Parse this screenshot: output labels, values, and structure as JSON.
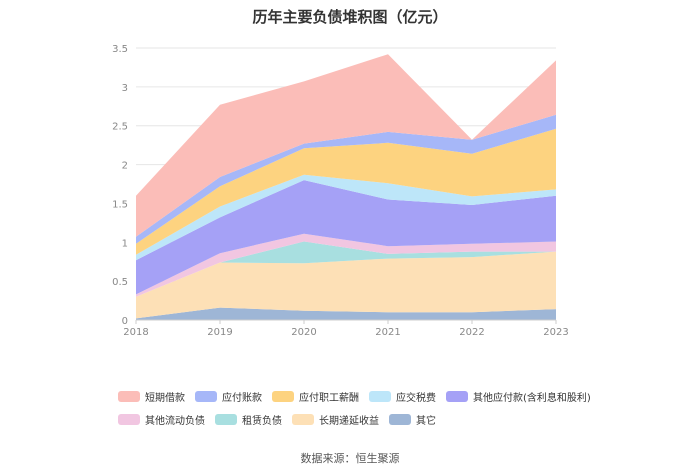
{
  "chart_data": {
    "type": "area",
    "stacked": true,
    "title": "历年主要负债堆积图（亿元）",
    "xlabel": "",
    "ylabel": "",
    "categories": [
      "2018",
      "2019",
      "2020",
      "2021",
      "2022",
      "2023"
    ],
    "ylim": [
      0,
      3.5
    ],
    "yticks": [
      "0",
      "0.5",
      "1",
      "1.5",
      "2",
      "2.5",
      "3",
      "3.5"
    ],
    "grid": true,
    "legend_position": "bottom",
    "series": [
      {
        "name": "其它",
        "color": "#9eb6d6",
        "values": [
          0.02,
          0.16,
          0.12,
          0.1,
          0.1,
          0.14
        ]
      },
      {
        "name": "长期递延收益",
        "color": "#fde0b6",
        "values": [
          0.28,
          0.58,
          0.61,
          0.69,
          0.71,
          0.74
        ]
      },
      {
        "name": "租赁负债",
        "color": "#a8dfe0",
        "values": [
          0.0,
          0.0,
          0.28,
          0.06,
          0.07,
          0.0
        ]
      },
      {
        "name": "其他流动负债",
        "color": "#f1c6e1",
        "values": [
          0.03,
          0.12,
          0.1,
          0.1,
          0.1,
          0.13
        ]
      },
      {
        "name": "其他应付款(含利息和股利)",
        "color": "#a5a1f6",
        "values": [
          0.44,
          0.46,
          0.69,
          0.6,
          0.5,
          0.59
        ]
      },
      {
        "name": "应交税费",
        "color": "#bde6f9",
        "values": [
          0.07,
          0.14,
          0.07,
          0.21,
          0.11,
          0.08
        ]
      },
      {
        "name": "应付职工薪酬",
        "color": "#fdd380",
        "values": [
          0.14,
          0.26,
          0.34,
          0.52,
          0.55,
          0.78
        ]
      },
      {
        "name": "应付账款",
        "color": "#a6b7f8",
        "values": [
          0.09,
          0.12,
          0.06,
          0.14,
          0.18,
          0.18
        ]
      },
      {
        "name": "短期借款",
        "color": "#fbbdb8",
        "values": [
          0.53,
          0.93,
          0.8,
          1.0,
          0.0,
          0.7
        ]
      }
    ]
  },
  "legend": {
    "row1": [
      "短期借款",
      "应付账款",
      "应付职工薪酬",
      "应交税费",
      "其他应付款(含利息和股利)"
    ],
    "row2": [
      "其他流动负债",
      "租赁负债",
      "长期递延收益",
      "其它"
    ]
  },
  "source": "数据来源：恒生聚源"
}
